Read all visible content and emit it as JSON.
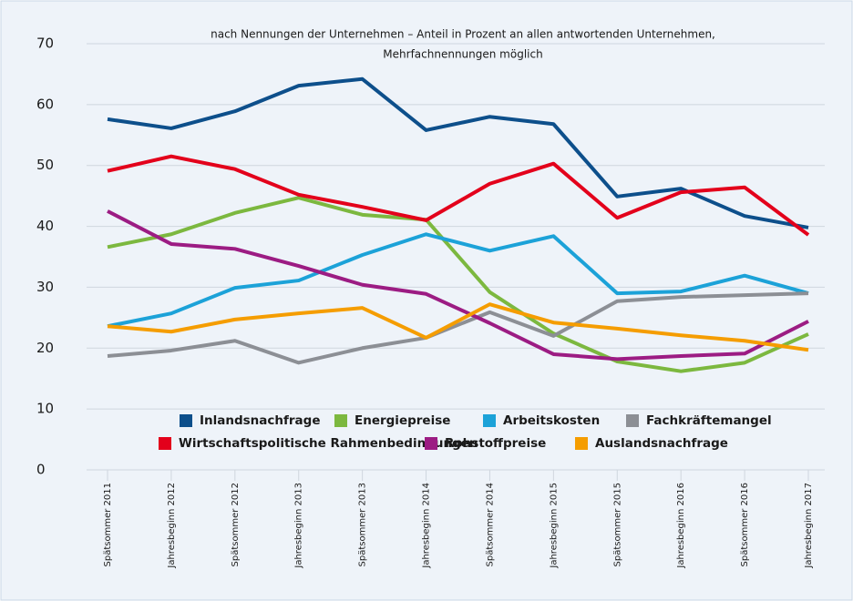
{
  "chart_data": {
    "type": "line",
    "title": [
      "nach Nennungen der Unternehmen – Anteil in Prozent an allen antwortenden Unternehmen,",
      "Mehrfachnennungen möglich"
    ],
    "categories": [
      "Spätsommer 2011",
      "Jahresbeginn 2012",
      "Spätsommer 2012",
      "Jahresbeginn 2013",
      "Spätsommer 2013",
      "Jahresbeginn 2014",
      "Spätsommer 2014",
      "Jahresbeginn 2015",
      "Spätsommer 2015",
      "Jahresbeginn 2016",
      "Spätsommer 2016",
      "Jahresbeginn 2017"
    ],
    "series": [
      {
        "name": "Inlandsnachfrage",
        "color": "#0d4f8b",
        "values": [
          57.6,
          56.1,
          58.9,
          63.1,
          64.2,
          55.8,
          58.0,
          56.8,
          44.9,
          46.2,
          41.7,
          39.8
        ]
      },
      {
        "name": "Energiepreise",
        "color": "#7cb83f",
        "values": [
          36.6,
          38.7,
          42.2,
          44.7,
          41.9,
          41.1,
          29.2,
          22.4,
          17.8,
          16.2,
          17.6,
          22.3
        ]
      },
      {
        "name": "Arbeitskosten",
        "color": "#1ca2d8",
        "values": [
          23.6,
          25.7,
          29.9,
          31.1,
          35.3,
          38.7,
          36.0,
          38.4,
          29.0,
          29.3,
          31.9,
          29.0
        ]
      },
      {
        "name": "Fachkräftemangel",
        "color": "#8c8f95",
        "values": [
          18.7,
          19.6,
          21.2,
          17.6,
          20.0,
          21.7,
          25.9,
          22.0,
          27.7,
          28.4,
          28.7,
          29.0
        ]
      },
      {
        "name": "Wirtschaftspolitische Rahmenbedingungen",
        "color": "#e3001b",
        "values": [
          49.1,
          51.5,
          49.4,
          45.2,
          43.2,
          41.0,
          47.0,
          50.3,
          41.4,
          45.6,
          46.4,
          38.6
        ]
      },
      {
        "name": "Rohstoffpreise",
        "color": "#9c1c83",
        "values": [
          42.5,
          37.1,
          36.3,
          33.5,
          30.4,
          28.9,
          24.1,
          19.0,
          18.2,
          18.7,
          19.1,
          24.4
        ]
      },
      {
        "name": "Auslandsnachfrage",
        "color": "#f59d00",
        "values": [
          23.6,
          22.7,
          24.7,
          25.7,
          26.6,
          21.7,
          27.2,
          24.2,
          23.2,
          22.1,
          21.2,
          19.7
        ]
      }
    ],
    "ylim": [
      0,
      70
    ],
    "yticks": [
      0,
      10,
      20,
      30,
      40,
      50,
      60,
      70
    ],
    "grid": true
  }
}
